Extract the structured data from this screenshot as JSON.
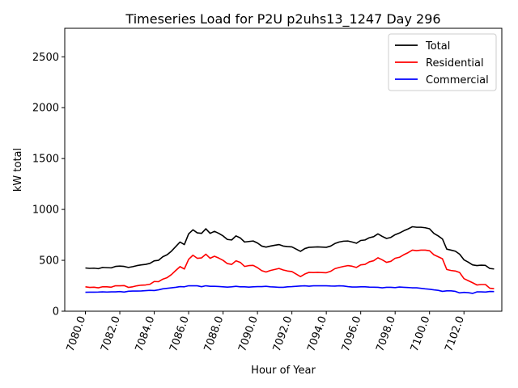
{
  "chart_data": {
    "type": "line",
    "title": "Timeseries Load for P2U p2uhs13_1247  Day 296",
    "xlabel": "Hour of Year",
    "ylabel": "kW total",
    "xlim": [
      7078.8,
      7104.2
    ],
    "ylim": [
      0,
      2780
    ],
    "xticks": [
      7080,
      7082,
      7084,
      7086,
      7088,
      7090,
      7092,
      7094,
      7096,
      7098,
      7100,
      7102
    ],
    "xtick_labels": [
      "7080.0",
      "7082.0",
      "7084.0",
      "7086.0",
      "7088.0",
      "7090.0",
      "7092.0",
      "7094.0",
      "7096.0",
      "7098.0",
      "7100.0",
      "7102.0"
    ],
    "yticks": [
      0,
      500,
      1000,
      1500,
      2000,
      2500
    ],
    "ytick_labels": [
      "0",
      "500",
      "1000",
      "1500",
      "2000",
      "2500"
    ],
    "grid": false,
    "legend_position": "top-right",
    "x": [
      7080.0,
      7080.25,
      7080.5,
      7080.75,
      7081.0,
      7081.25,
      7081.5,
      7081.75,
      7082.0,
      7082.25,
      7082.5,
      7082.75,
      7083.0,
      7083.25,
      7083.5,
      7083.75,
      7084.0,
      7084.25,
      7084.5,
      7084.75,
      7085.0,
      7085.25,
      7085.5,
      7085.75,
      7086.0,
      7086.25,
      7086.5,
      7086.75,
      7087.0,
      7087.25,
      7087.5,
      7087.75,
      7088.0,
      7088.25,
      7088.5,
      7088.75,
      7089.0,
      7089.25,
      7089.5,
      7089.75,
      7090.0,
      7090.25,
      7090.5,
      7090.75,
      7091.0,
      7091.25,
      7091.5,
      7091.75,
      7092.0,
      7092.25,
      7092.5,
      7092.75,
      7093.0,
      7093.25,
      7093.5,
      7093.75,
      7094.0,
      7094.25,
      7094.5,
      7094.75,
      7095.0,
      7095.25,
      7095.5,
      7095.75,
      7096.0,
      7096.25,
      7096.5,
      7096.75,
      7097.0,
      7097.25,
      7097.5,
      7097.75,
      7098.0,
      7098.25,
      7098.5,
      7098.75,
      7099.0,
      7099.25,
      7099.5,
      7099.75,
      7100.0,
      7100.25,
      7100.5,
      7100.75,
      7101.0,
      7101.25,
      7101.5,
      7101.75,
      7102.0,
      7102.25,
      7102.5,
      7102.75,
      7103.0,
      7103.25,
      7103.5,
      7103.75
    ],
    "series": [
      {
        "name": "Total",
        "color": "#000000",
        "values": [
          425,
          421,
          423,
          418,
          430,
          428,
          426,
          440,
          443,
          440,
          430,
          438,
          448,
          455,
          460,
          470,
          495,
          500,
          535,
          555,
          590,
          635,
          680,
          655,
          760,
          800,
          770,
          765,
          810,
          765,
          785,
          765,
          740,
          705,
          700,
          740,
          720,
          680,
          685,
          690,
          670,
          640,
          630,
          640,
          648,
          655,
          640,
          635,
          632,
          610,
          588,
          615,
          628,
          630,
          632,
          630,
          628,
          640,
          665,
          680,
          688,
          690,
          680,
          668,
          695,
          700,
          722,
          732,
          760,
          735,
          715,
          725,
          752,
          768,
          790,
          808,
          830,
          825,
          825,
          820,
          810,
          765,
          740,
          710,
          610,
          600,
          590,
          560,
          505,
          482,
          455,
          448,
          452,
          450,
          420,
          415
        ]
      },
      {
        "name": "Residential",
        "color": "#ff0000",
        "values": [
          240,
          234,
          236,
          230,
          240,
          240,
          236,
          250,
          250,
          252,
          234,
          240,
          250,
          256,
          258,
          265,
          292,
          290,
          315,
          330,
          360,
          400,
          438,
          415,
          510,
          550,
          520,
          524,
          560,
          520,
          540,
          522,
          500,
          468,
          460,
          495,
          480,
          440,
          448,
          450,
          428,
          398,
          385,
          400,
          410,
          420,
          405,
          395,
          390,
          365,
          340,
          365,
          382,
          380,
          382,
          380,
          378,
          392,
          418,
          430,
          440,
          448,
          442,
          430,
          455,
          460,
          485,
          496,
          525,
          505,
          480,
          490,
          520,
          530,
          555,
          575,
          600,
          595,
          600,
          600,
          594,
          555,
          535,
          515,
          410,
          400,
          395,
          380,
          320,
          300,
          280,
          258,
          262,
          262,
          226,
          222
        ]
      },
      {
        "name": "Commercial",
        "color": "#0000ff",
        "values": [
          186,
          187,
          187,
          188,
          190,
          188,
          190,
          190,
          193,
          188,
          196,
          198,
          198,
          199,
          202,
          205,
          203,
          210,
          220,
          225,
          230,
          235,
          242,
          240,
          250,
          250,
          250,
          241,
          250,
          245,
          245,
          243,
          240,
          237,
          240,
          245,
          240,
          240,
          237,
          240,
          242,
          242,
          245,
          240,
          238,
          235,
          235,
          240,
          242,
          245,
          248,
          250,
          246,
          250,
          250,
          250,
          250,
          248,
          247,
          250,
          248,
          242,
          238,
          238,
          240,
          240,
          237,
          236,
          235,
          230,
          235,
          235,
          232,
          238,
          235,
          233,
          230,
          230,
          225,
          220,
          216,
          210,
          205,
          195,
          200,
          200,
          195,
          180,
          185,
          182,
          175,
          190,
          190,
          188,
          194,
          193
        ]
      }
    ]
  }
}
